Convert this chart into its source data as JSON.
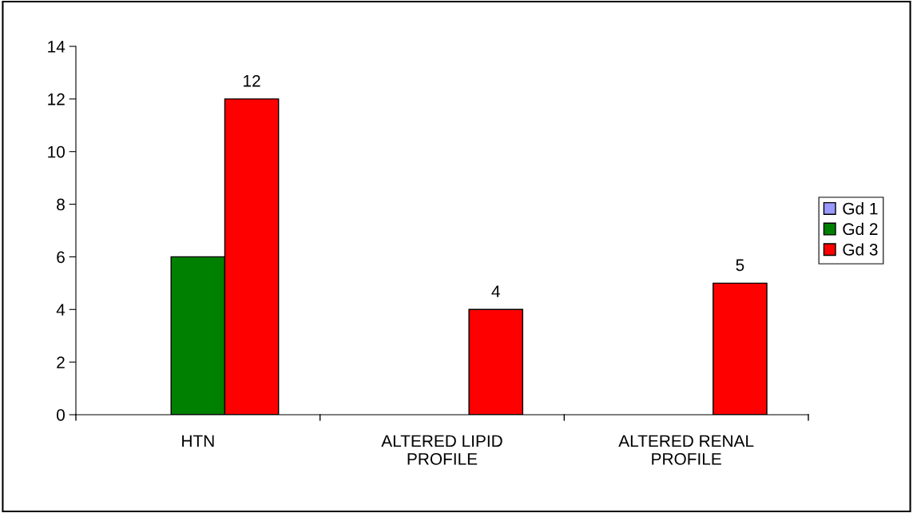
{
  "chart_data": {
    "type": "bar",
    "categories": [
      "HTN",
      "ALTERED LIPID\nPROFILE",
      "ALTERED RENAL\nPROFILE"
    ],
    "series": [
      {
        "name": "Gd 1",
        "color": "#9999ff",
        "values": [
          null,
          null,
          null
        ]
      },
      {
        "name": "Gd 2",
        "color": "#008000",
        "values": [
          6,
          null,
          null
        ]
      },
      {
        "name": "Gd 3",
        "color": "#ff0000",
        "values": [
          12,
          4,
          5
        ],
        "value_labels": [
          "12",
          "4",
          "5"
        ]
      }
    ],
    "ylim": [
      0,
      14
    ],
    "yticks": [
      0,
      2,
      4,
      6,
      8,
      10,
      12,
      14
    ],
    "grid": false,
    "legend": "right"
  }
}
